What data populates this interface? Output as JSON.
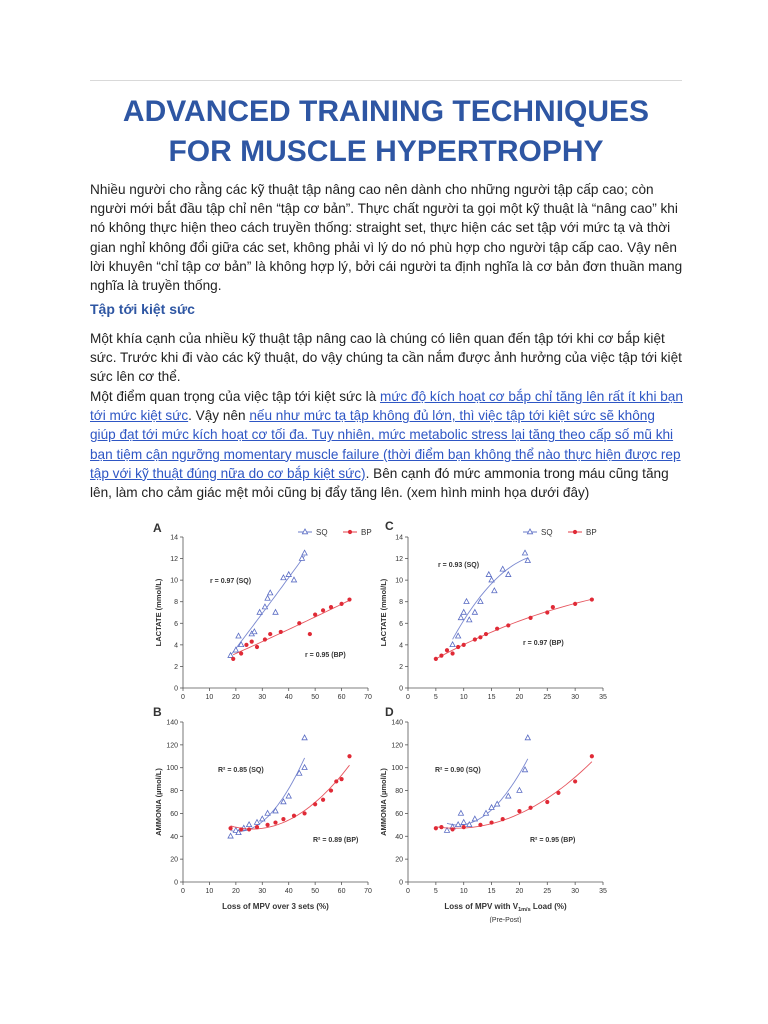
{
  "header": {
    "title_lines": [
      "ADVANCED TRAINING TECHNIQUES",
      "FOR MUSCLE HYPERTROPHY"
    ]
  },
  "intro": "Nhiều người cho rằng các kỹ thuật tập nâng cao nên dành cho những người tập cấp cao; còn người mới bắt đầu tập chỉ nên “tập cơ bản”. Thực chất người ta gọi một kỹ thuật là “nâng cao” khi nó không thực hiện theo cách truyền thống: straight set, thực hiện các set tập với mức tạ và thời gian nghỉ không đổi giữa các set, không phải vì lý do nó phù hợp cho người tập cấp cao. Vậy nên lời khuyên “chỉ tập cơ bản” là không hợp lý, bởi cái người ta định nghĩa là cơ bản đơn thuần mang nghĩa là truyền thống.",
  "section": {
    "heading": "Tập tới kiệt sức",
    "paragraph_1": "Một khía cạnh của nhiều kỹ thuật tập nâng cao là chúng có liên quan đến tập tới khi cơ bắp kiệt sức. Trước khi đi vào các kỹ thuật, do vậy chúng ta cần nắm được ảnh hưởng của việc tập tới kiệt sức lên cơ thể.",
    "paragraph_2": [
      "Một điểm quan trọng của việc tập tới kiệt sức là ",
      "mức độ kích hoạt cơ bắp chỉ tăng lên rất ít khi bạn tới mức kiệt sức",
      ". Vậy nên ",
      "nếu như mức tạ tập không đủ lớn, thì việc tập tới kiệt sức sẽ không giúp đạt tới mức kích hoạt cơ tối đa. Tuy nhiên, mức metabolic stress lại tăng theo cấp số mũ khi bạn tiệm cận ngưỡng momentary muscle failure (thời điểm bạn không thể nào thực hiện được rep tập với kỹ thuật đúng nữa do cơ bắp kiệt sức)",
      ".  Bên cạnh đó mức ammonia trong máu cũng tăng lên, làm cho cảm giác mệt mỏi cũng bị đẩy tăng lên. (xem hình minh họa dưới đây)"
    ]
  },
  "figure": {
    "series": [
      {
        "name": "SQ",
        "color": "#5a6cc4"
      },
      {
        "name": "BP",
        "color": "#e02a36"
      }
    ],
    "panels": [
      {
        "label": "A",
        "legend": true,
        "y_label": "LACTATE (mmol/L)",
        "xlim": [
          0,
          70
        ],
        "xticks": [
          0,
          10,
          20,
          30,
          40,
          50,
          60,
          70
        ],
        "ylim": [
          0,
          14
        ],
        "yticks": [
          0,
          2,
          4,
          6,
          8,
          10,
          12,
          14
        ],
        "annotations": [
          "r = 0.97 (SQ)",
          "r = 0.95 (BP)"
        ],
        "data": [
          {
            "x": [
              18,
              20,
              21,
              22,
              26,
              27,
              29,
              31,
              32,
              33,
              35,
              38,
              40,
              42,
              45,
              46
            ],
            "y": [
              3,
              3.5,
              4.8,
              4,
              5,
              5.2,
              7,
              7.5,
              8.3,
              8.8,
              7,
              10.2,
              10.5,
              10,
              12,
              12.5
            ]
          },
          {
            "x": [
              19,
              22,
              24,
              26,
              28,
              31,
              33,
              37,
              44,
              48,
              50,
              53,
              56,
              60,
              63
            ],
            "y": [
              2.7,
              3.2,
              4,
              4.3,
              3.8,
              4.5,
              5,
              5.2,
              6,
              5,
              6.8,
              7.2,
              7.5,
              7.8,
              8.2
            ]
          }
        ]
      },
      {
        "label": "B",
        "legend": false,
        "y_label": "AMMONIA (µmol/L)",
        "x_label": "Loss of MPV over 3 sets  (%)",
        "xlim": [
          0,
          70
        ],
        "xticks": [
          0,
          10,
          20,
          30,
          40,
          50,
          60,
          70
        ],
        "ylim": [
          0,
          140
        ],
        "yticks": [
          0,
          20,
          40,
          60,
          80,
          100,
          120,
          140
        ],
        "annotations": [
          "R² = 0.85 (SQ)",
          "R² = 0.89 (BP)"
        ],
        "data": [
          {
            "x": [
              18,
              20,
              21,
              23,
              25,
              28,
              30,
              32,
              35,
              38,
              40,
              44,
              46,
              46
            ],
            "y": [
              40,
              45,
              43,
              47,
              50,
              52,
              55,
              60,
              62,
              70,
              75,
              95,
              100,
              126
            ]
          },
          {
            "x": [
              18,
              22,
              25,
              28,
              32,
              35,
              38,
              42,
              46,
              50,
              53,
              56,
              58,
              60,
              63
            ],
            "y": [
              47,
              46,
              46,
              48,
              50,
              52,
              55,
              58,
              60,
              68,
              72,
              80,
              88,
              90,
              110
            ]
          }
        ]
      },
      {
        "label": "C",
        "legend": true,
        "y_label": "LACTATE (mmol/L)",
        "xlim": [
          0,
          35
        ],
        "xticks": [
          0,
          5,
          10,
          15,
          20,
          25,
          30,
          35
        ],
        "ylim": [
          0,
          14
        ],
        "yticks": [
          0,
          2,
          4,
          6,
          8,
          10,
          12,
          14
        ],
        "annotations": [
          "r = 0.93 (SQ)",
          "r = 0.97 (BP)"
        ],
        "data": [
          {
            "x": [
              8,
              9,
              9.5,
              10,
              10.5,
              11,
              12,
              13,
              14.5,
              15,
              15.5,
              17,
              18,
              21,
              21.5
            ],
            "y": [
              4,
              4.8,
              6.5,
              7,
              8,
              6.3,
              7,
              8,
              10.5,
              10,
              9,
              11,
              10.5,
              12.5,
              11.8
            ]
          },
          {
            "x": [
              5,
              6,
              7,
              8,
              9,
              10,
              12,
              13,
              14,
              16,
              18,
              22,
              25,
              26,
              30,
              33
            ],
            "y": [
              2.7,
              3,
              3.5,
              3.2,
              3.8,
              4,
              4.5,
              4.7,
              5,
              5.5,
              5.8,
              6.5,
              7,
              7.5,
              7.8,
              8.2
            ]
          }
        ]
      },
      {
        "label": "D",
        "legend": false,
        "y_label": "AMMONIA (µmol/L)",
        "x_label_parts": [
          "Loss of MPV with V",
          "1m/s",
          " Load  (%)"
        ],
        "x_note": "(Pre-Post)",
        "xlim": [
          0,
          35
        ],
        "xticks": [
          0,
          5,
          10,
          15,
          20,
          25,
          30,
          35
        ],
        "ylim": [
          0,
          140
        ],
        "yticks": [
          0,
          20,
          40,
          60,
          80,
          100,
          120,
          140
        ],
        "annotations": [
          "R² = 0.90 (SQ)",
          "R² = 0.95 (BP)"
        ],
        "data": [
          {
            "x": [
              7,
              8,
              9,
              9.5,
              10,
              11,
              12,
              14,
              15,
              16,
              18,
              20,
              21,
              21.5
            ],
            "y": [
              45,
              48,
              50,
              60,
              52,
              50,
              55,
              60,
              65,
              68,
              75,
              80,
              98,
              126
            ]
          },
          {
            "x": [
              5,
              6,
              8,
              10,
              13,
              15,
              17,
              20,
              22,
              25,
              27,
              30,
              33
            ],
            "y": [
              47,
              48,
              46,
              48,
              50,
              52,
              55,
              62,
              65,
              70,
              78,
              88,
              110
            ]
          }
        ]
      }
    ]
  }
}
